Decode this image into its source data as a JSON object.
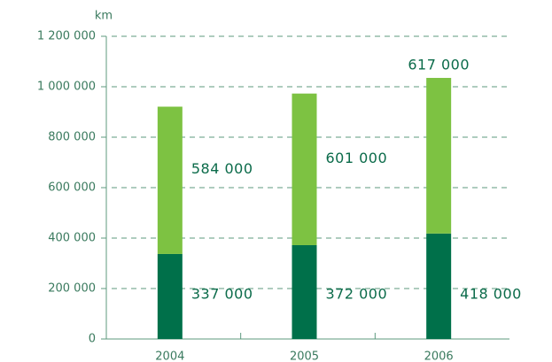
{
  "chart_data": {
    "type": "stacked_bar",
    "y_axis_label": "km",
    "categories": [
      "2004",
      "2005",
      "2006"
    ],
    "series": [
      {
        "color": "#00704a",
        "values": [
          337000,
          372000,
          418000
        ],
        "value_labels": [
          "337 000",
          "372 000",
          "418 000"
        ]
      },
      {
        "color": "#7dc242",
        "values": [
          584000,
          601000,
          617000
        ],
        "value_labels": [
          "584 000",
          "601 000",
          "617 000"
        ]
      }
    ],
    "ylim": [
      0,
      1200000
    ],
    "yticks": [
      0,
      {
        "value": 200000,
        "label": "200 000"
      },
      {
        "value": 400000,
        "label": "400 000"
      },
      {
        "value": 600000,
        "label": "600 000"
      },
      {
        "value": 800000,
        "label": "800 000"
      },
      {
        "value": 1000000,
        "label": "1 000 000"
      },
      {
        "value": 1200000,
        "label": "1 200 000"
      }
    ],
    "grid": true
  }
}
